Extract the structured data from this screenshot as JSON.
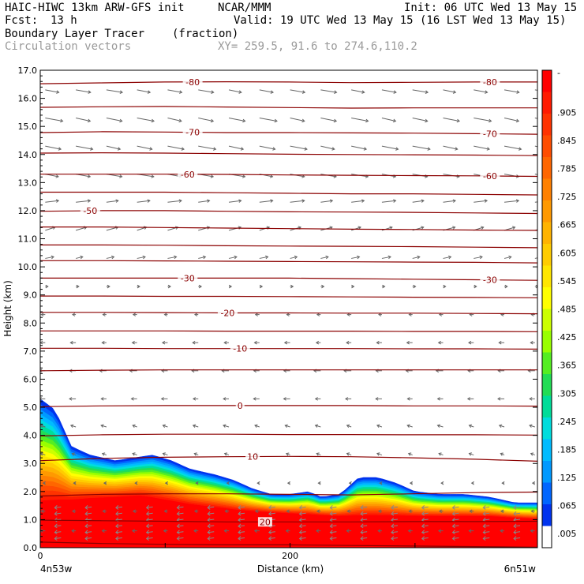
{
  "header": {
    "model": "HAIC-HIWC 13km ARW-GFS init",
    "org": "NCAR/MMM",
    "init": "Init: 06 UTC Wed 13 May 15",
    "fcst_label": "Fcst:",
    "fcst_value": "13 h",
    "valid": "Valid: 19 UTC Wed 13 May 15 (16 LST Wed 13 May 15)",
    "field": "Boundary Layer Tracer",
    "units": "(fraction)",
    "overlay": "Circulation vectors",
    "xy": "XY= 259.5, 91.6 to 274.6,110.2"
  },
  "chart_data": {
    "type": "heatmap",
    "title": "Boundary Layer Tracer",
    "ylabel": "Height (km)",
    "xlabel": "Distance (km)",
    "ylim": [
      0,
      17
    ],
    "xlim": [
      0,
      398
    ],
    "yticks": [
      "0.0",
      "1.0",
      "2.0",
      "3.0",
      "4.0",
      "5.0",
      "6.0",
      "7.0",
      "8.0",
      "9.0",
      "10.0",
      "11.0",
      "12.0",
      "13.0",
      "14.0",
      "15.0",
      "16.0",
      "17.0"
    ],
    "xticks": [
      {
        "value": 0,
        "label": "0"
      },
      {
        "value": 200,
        "label": "200"
      }
    ],
    "x_endpoints": {
      "left": "4n53w",
      "right": "6n51w"
    },
    "colorbar": {
      "labels": [
        "-",
        ".905",
        ".845",
        ".785",
        ".725",
        ".665",
        ".605",
        ".545",
        ".485",
        ".425",
        ".365",
        ".305",
        ".245",
        ".185",
        ".125",
        ".065",
        ".005"
      ],
      "colors": [
        "#ff0000",
        "#ff1a00",
        "#ff3300",
        "#ff4d00",
        "#ff6600",
        "#ff8000",
        "#ff9900",
        "#ffb300",
        "#ffcc00",
        "#ffe600",
        "#ffff00",
        "#ccff00",
        "#99ff00",
        "#55ee22",
        "#22dd55",
        "#00dd99",
        "#00dddd",
        "#00bbff",
        "#0099ff",
        "#0066ff",
        "#0033ee",
        "#ffffff"
      ]
    },
    "tracer_top_km": [
      {
        "x": 0,
        "top": 5.3
      },
      {
        "x": 12,
        "top": 4.9
      },
      {
        "x": 25,
        "top": 3.6
      },
      {
        "x": 40,
        "top": 3.3
      },
      {
        "x": 60,
        "top": 3.1
      },
      {
        "x": 75,
        "top": 3.2
      },
      {
        "x": 90,
        "top": 3.3
      },
      {
        "x": 105,
        "top": 3.1
      },
      {
        "x": 120,
        "top": 2.8
      },
      {
        "x": 140,
        "top": 2.6
      },
      {
        "x": 155,
        "top": 2.4
      },
      {
        "x": 170,
        "top": 2.1
      },
      {
        "x": 185,
        "top": 1.9
      },
      {
        "x": 200,
        "top": 1.9
      },
      {
        "x": 215,
        "top": 2.0
      },
      {
        "x": 225,
        "top": 1.8
      },
      {
        "x": 240,
        "top": 1.9
      },
      {
        "x": 255,
        "top": 2.5
      },
      {
        "x": 270,
        "top": 2.5
      },
      {
        "x": 285,
        "top": 2.3
      },
      {
        "x": 300,
        "top": 2.0
      },
      {
        "x": 320,
        "top": 1.9
      },
      {
        "x": 340,
        "top": 1.9
      },
      {
        "x": 360,
        "top": 1.8
      },
      {
        "x": 380,
        "top": 1.6
      },
      {
        "x": 398,
        "top": 1.6
      }
    ],
    "tracer_full_km": [
      {
        "x": 0,
        "top": 1.5
      },
      {
        "x": 40,
        "top": 1.7
      },
      {
        "x": 80,
        "top": 1.8
      },
      {
        "x": 120,
        "top": 1.5
      },
      {
        "x": 160,
        "top": 1.3
      },
      {
        "x": 200,
        "top": 1.2
      },
      {
        "x": 240,
        "top": 1.1
      },
      {
        "x": 280,
        "top": 1.1
      },
      {
        "x": 320,
        "top": 1.1
      },
      {
        "x": 360,
        "top": 1.1
      },
      {
        "x": 398,
        "top": 1.0
      }
    ],
    "isotherms": [
      {
        "value": -80,
        "heights": [
          16.52,
          16.55,
          16.58,
          16.59,
          16.58,
          16.56,
          16.57,
          16.58,
          16.58
        ],
        "labels": [
          {
            "x": 122,
            "text": "-80"
          },
          {
            "x": 360,
            "text": "-80"
          }
        ]
      },
      {
        "value": -75,
        "heights": [
          15.68,
          15.7,
          15.71,
          15.69,
          15.67,
          15.65,
          15.66,
          15.66,
          15.66
        ],
        "labels": []
      },
      {
        "value": -70,
        "heights": [
          14.78,
          14.81,
          14.8,
          14.78,
          14.78,
          14.77,
          14.76,
          14.74,
          14.72
        ],
        "labels": [
          {
            "x": 122,
            "text": "-70"
          },
          {
            "x": 360,
            "text": "-70"
          }
        ]
      },
      {
        "value": -65,
        "heights": [
          14.05,
          14.06,
          14.05,
          14.03,
          14.01,
          14.0,
          13.99,
          13.98,
          13.96
        ],
        "labels": []
      },
      {
        "value": -60,
        "heights": [
          13.3,
          13.3,
          13.3,
          13.29,
          13.27,
          13.26,
          13.25,
          13.24,
          13.22
        ],
        "labels": [
          {
            "x": 118,
            "text": "-60"
          },
          {
            "x": 360,
            "text": "-60"
          }
        ]
      },
      {
        "value": -55,
        "heights": [
          12.66,
          12.66,
          12.66,
          12.64,
          12.62,
          12.6,
          12.6,
          12.58,
          12.56
        ],
        "labels": []
      },
      {
        "value": -50,
        "heights": [
          11.98,
          12.0,
          12.0,
          11.98,
          11.96,
          11.95,
          11.94,
          11.92,
          11.9
        ],
        "labels": [
          {
            "x": 40,
            "text": "-50"
          }
        ]
      },
      {
        "value": -45,
        "heights": [
          11.42,
          11.42,
          11.4,
          11.38,
          11.36,
          11.34,
          11.33,
          11.31,
          11.3
        ],
        "labels": []
      },
      {
        "value": -40,
        "heights": [
          10.78,
          10.78,
          10.77,
          10.75,
          10.74,
          10.73,
          10.72,
          10.7,
          10.68
        ],
        "labels": []
      },
      {
        "value": -35,
        "heights": [
          10.22,
          10.22,
          10.21,
          10.2,
          10.19,
          10.18,
          10.17,
          10.16,
          10.14
        ],
        "labels": []
      },
      {
        "value": -30,
        "heights": [
          9.6,
          9.6,
          9.6,
          9.6,
          9.6,
          9.58,
          9.56,
          9.54,
          9.52
        ],
        "labels": [
          {
            "x": 118,
            "text": "-30"
          },
          {
            "x": 360,
            "text": "-30"
          }
        ]
      },
      {
        "value": -25,
        "heights": [
          8.96,
          8.96,
          8.95,
          8.95,
          8.94,
          8.93,
          8.92,
          8.91,
          8.9
        ],
        "labels": []
      },
      {
        "value": -20,
        "heights": [
          8.38,
          8.38,
          8.37,
          8.36,
          8.36,
          8.35,
          8.35,
          8.34,
          8.33
        ],
        "labels": [
          {
            "x": 150,
            "text": "-20"
          }
        ]
      },
      {
        "value": -15,
        "heights": [
          7.72,
          7.72,
          7.72,
          7.71,
          7.71,
          7.71,
          7.7,
          7.7,
          7.69
        ],
        "labels": []
      },
      {
        "value": -10,
        "heights": [
          7.1,
          7.1,
          7.09,
          7.09,
          7.09,
          7.09,
          7.08,
          7.08,
          7.07
        ],
        "labels": [
          {
            "x": 160,
            "text": "-10"
          }
        ]
      },
      {
        "value": -5,
        "heights": [
          6.3,
          6.32,
          6.33,
          6.33,
          6.33,
          6.33,
          6.33,
          6.33,
          6.33
        ],
        "labels": []
      },
      {
        "value": 0,
        "heights": [
          5.02,
          5.05,
          5.06,
          5.06,
          5.06,
          5.06,
          5.05,
          5.05,
          5.04
        ],
        "labels": [
          {
            "x": 160,
            "text": "0"
          }
        ]
      },
      {
        "value": 5,
        "heights": [
          3.98,
          4.02,
          4.04,
          4.04,
          4.03,
          4.03,
          4.02,
          4.02,
          4.01
        ],
        "labels": []
      },
      {
        "value": 10,
        "heights": [
          3.1,
          3.18,
          3.22,
          3.24,
          3.25,
          3.24,
          3.2,
          3.15,
          3.08
        ],
        "labels": [
          {
            "x": 170,
            "text": "10"
          }
        ]
      },
      {
        "value": 15,
        "heights": [
          1.84,
          1.9,
          1.92,
          1.92,
          1.9,
          1.88,
          1.92,
          1.96,
          1.98
        ],
        "labels": []
      },
      {
        "value": 20,
        "heights": [
          0.98,
          0.96,
          0.94,
          0.92,
          0.92,
          0.92,
          0.93,
          0.93,
          0.94
        ],
        "labels": [
          {
            "x": 180,
            "text": "20"
          }
        ]
      },
      {
        "value": 25,
        "heights": [
          0.2,
          0.15,
          0.12,
          0.1,
          0.1,
          0.08,
          0.06,
          0.04,
          0.02
        ],
        "labels": []
      }
    ],
    "wind_profile": [
      {
        "z": 16.3,
        "u": 2.0,
        "w": -0.08
      },
      {
        "z": 15.3,
        "u": 2.2,
        "w": -0.1
      },
      {
        "z": 14.3,
        "u": 2.2,
        "w": -0.1
      },
      {
        "z": 13.3,
        "u": 2.1,
        "w": -0.08
      },
      {
        "z": 12.3,
        "u": 1.8,
        "w": 0.05
      },
      {
        "z": 11.3,
        "u": 1.5,
        "w": 0.1
      },
      {
        "z": 10.3,
        "u": 1.1,
        "w": 0.05
      },
      {
        "z": 9.3,
        "u": 0.4,
        "w": 0.0
      },
      {
        "z": 8.3,
        "u": -0.5,
        "w": 0.0
      },
      {
        "z": 7.3,
        "u": -0.7,
        "w": 0.0
      },
      {
        "z": 6.3,
        "u": -0.9,
        "w": 0.0
      },
      {
        "z": 5.3,
        "u": -0.8,
        "w": 0.0
      },
      {
        "z": 4.3,
        "u": -0.7,
        "w": 0.05
      },
      {
        "z": 3.3,
        "u": -0.6,
        "w": 0.05
      },
      {
        "z": 2.3,
        "u": -0.3,
        "w": 0.0
      },
      {
        "z": 1.3,
        "u": -0.5,
        "w": 0.0
      },
      {
        "z": 0.6,
        "u": -0.6,
        "w": 0.0
      }
    ],
    "grid": false,
    "legend": "colorbar-right"
  }
}
